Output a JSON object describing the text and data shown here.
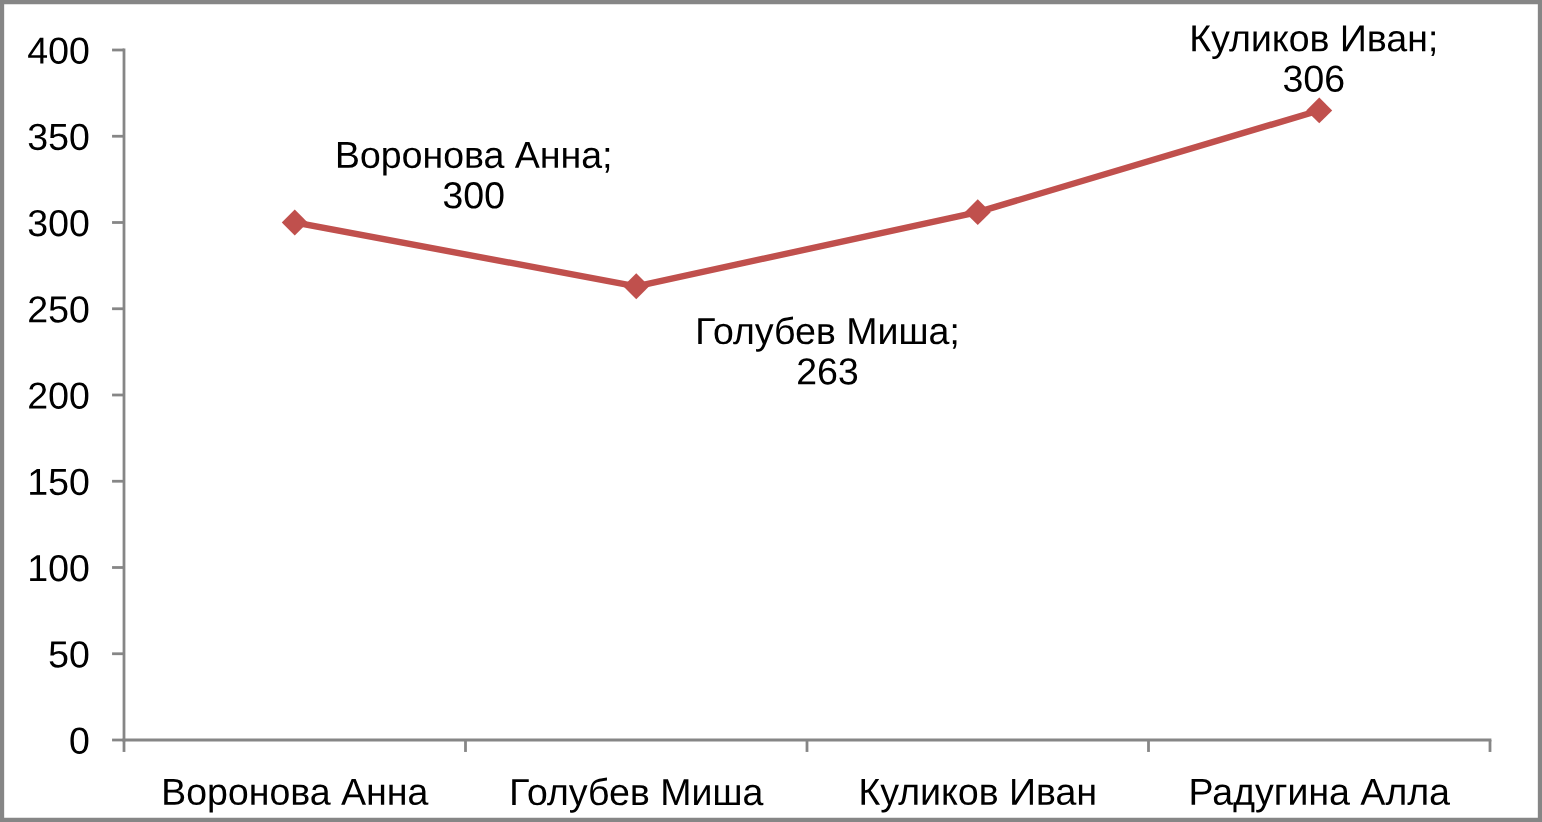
{
  "chart_data": {
    "type": "line",
    "categories": [
      "Воронова Анна",
      "Голубев Миша",
      "Куликов Иван",
      "Радугина Алла"
    ],
    "series": [
      {
        "color": "#c0504d",
        "values": [
          300,
          263,
          306,
          365
        ]
      }
    ],
    "ylim": [
      0,
      400
    ],
    "yticks": [
      0,
      50,
      100,
      150,
      200,
      250,
      300,
      350,
      400
    ],
    "marker": "diamond",
    "line_style": "solid",
    "annotations": [
      "Воронова Анна;\n300",
      "Голубев Миша;\n263",
      "Куликов Иван;\n306"
    ]
  }
}
